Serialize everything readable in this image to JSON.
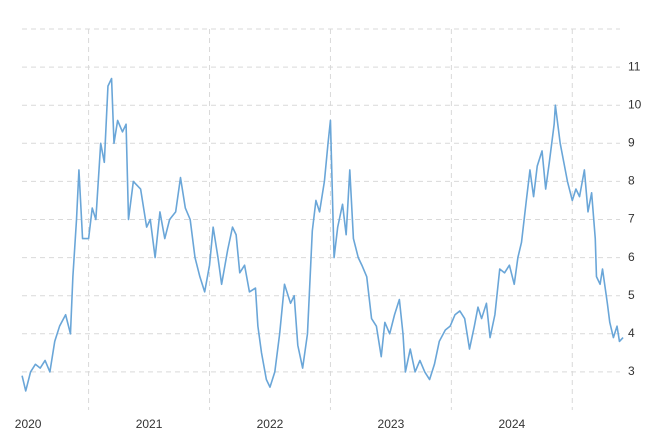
{
  "chart_data": {
    "type": "line",
    "color": "#6aa6d8",
    "x": [
      2019.95,
      2019.98,
      2020.02,
      2020.06,
      2020.1,
      2020.14,
      2020.18,
      2020.22,
      2020.26,
      2020.31,
      2020.35,
      2020.37,
      2020.4,
      2020.42,
      2020.45,
      2020.5,
      2020.53,
      2020.56,
      2020.6,
      2020.63,
      2020.66,
      2020.69,
      2020.71,
      2020.74,
      2020.78,
      2020.81,
      2020.83,
      2020.87,
      2020.93,
      2020.98,
      2021.01,
      2021.05,
      2021.09,
      2021.13,
      2021.17,
      2021.22,
      2021.26,
      2021.3,
      2021.34,
      2021.38,
      2021.42,
      2021.46,
      2021.5,
      2021.53,
      2021.57,
      2021.6,
      2021.65,
      2021.69,
      2021.72,
      2021.75,
      2021.79,
      2021.83,
      2021.88,
      2021.9,
      2021.93,
      2021.97,
      2022.0,
      2022.04,
      2022.08,
      2022.12,
      2022.17,
      2022.2,
      2022.23,
      2022.27,
      2022.31,
      2022.35,
      2022.38,
      2022.41,
      2022.45,
      2022.48,
      2022.5,
      2022.53,
      2022.56,
      2022.6,
      2022.63,
      2022.66,
      2022.69,
      2022.73,
      2022.76,
      2022.8,
      2022.84,
      2022.88,
      2022.92,
      2022.95,
      2022.99,
      2023.03,
      2023.07,
      2023.1,
      2023.12,
      2023.16,
      2023.2,
      2023.24,
      2023.28,
      2023.32,
      2023.36,
      2023.4,
      2023.45,
      2023.49,
      2023.53,
      2023.57,
      2023.61,
      2023.65,
      2023.69,
      2023.72,
      2023.75,
      2023.79,
      2023.82,
      2023.86,
      2023.9,
      2023.94,
      2023.98,
      2024.02,
      2024.05,
      2024.08,
      2024.12,
      2024.15,
      2024.18,
      2024.21,
      2024.25,
      2024.28,
      2024.31,
      2024.35,
      2024.36,
      2024.4,
      2024.43,
      2024.46,
      2024.5,
      2024.53,
      2024.56,
      2024.6,
      2024.63,
      2024.66,
      2024.69,
      2024.7,
      2024.73,
      2024.75,
      2024.79,
      2024.81,
      2024.84,
      2024.87,
      2024.89,
      2024.92
    ],
    "values": [
      2.9,
      2.5,
      3.0,
      3.2,
      3.1,
      3.3,
      3.0,
      3.8,
      4.2,
      4.5,
      4.0,
      5.5,
      7.0,
      8.3,
      6.5,
      6.5,
      7.3,
      7.0,
      9.0,
      8.5,
      10.5,
      10.7,
      9.0,
      9.6,
      9.3,
      9.5,
      7.0,
      8.0,
      7.8,
      6.8,
      7.0,
      6.0,
      7.2,
      6.5,
      7.0,
      7.2,
      8.1,
      7.3,
      7.0,
      6.0,
      5.5,
      5.1,
      5.8,
      6.8,
      6.0,
      5.3,
      6.2,
      6.8,
      6.6,
      5.6,
      5.8,
      5.1,
      5.2,
      4.2,
      3.5,
      2.8,
      2.6,
      3.0,
      4.0,
      5.3,
      4.8,
      5.0,
      3.7,
      3.1,
      4.0,
      6.7,
      7.5,
      7.2,
      8.0,
      9.0,
      9.6,
      6.0,
      6.8,
      7.4,
      6.6,
      8.3,
      6.5,
      6.0,
      5.8,
      5.5,
      4.4,
      4.2,
      3.4,
      4.3,
      4.0,
      4.5,
      4.9,
      4.0,
      3.0,
      3.6,
      3.0,
      3.3,
      3.0,
      2.8,
      3.2,
      3.8,
      4.1,
      4.2,
      4.5,
      4.6,
      4.4,
      3.6,
      4.2,
      4.7,
      4.4,
      4.8,
      3.9,
      4.5,
      5.7,
      5.6,
      5.8,
      5.3,
      6.0,
      6.4,
      7.5,
      8.3,
      7.6,
      8.4,
      8.8,
      7.8,
      8.5,
      9.5,
      10.0,
      9.0,
      8.5,
      8.0,
      7.5,
      7.8,
      7.6,
      8.3,
      7.2,
      7.7,
      6.5,
      5.5,
      5.3,
      5.7,
      4.8,
      4.3,
      3.9,
      4.2,
      3.8,
      3.9
    ],
    "xlim": [
      2019.85,
      2025.06
    ],
    "xticks": [
      2020,
      2021,
      2022,
      2023,
      2024
    ],
    "x_gridlines": [
      2020.5,
      2021.5,
      2022.5,
      2023.5,
      2024.5
    ],
    "ylim": [
      2,
      12
    ],
    "yticks": [
      3,
      4,
      5,
      6,
      7,
      8,
      9,
      10,
      11
    ],
    "grid": true
  }
}
